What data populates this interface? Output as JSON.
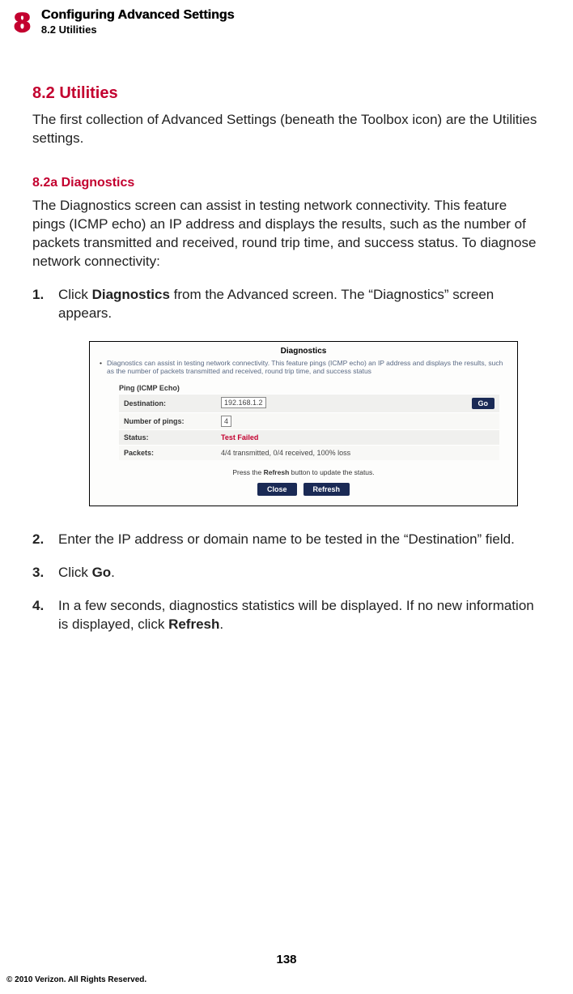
{
  "header": {
    "chapter_number": "8",
    "chapter_title": "Configuring Advanced Settings",
    "section_label": "8.2  Utilities"
  },
  "section": {
    "heading": "8.2  Utilities",
    "intro": "The first collection of Advanced Settings (beneath the Toolbox icon) are the Utilities settings."
  },
  "subsection": {
    "heading": "8.2a Diagnostics",
    "intro": "The Diagnostics screen can assist in testing network connectivity. This feature pings (ICMP echo) an IP address and displays the results, such as the number of packets transmitted and received, round trip time, and success status.  To diagnose network connectivity:"
  },
  "steps": {
    "s1_num": "1.",
    "s1_pre": "Click ",
    "s1_bold": "Diagnostics",
    "s1_post": " from the Advanced screen. The “Diagnostics” screen appears.",
    "s2_num": "2.",
    "s2_txt": "Enter the IP address or domain name to be tested in the “Destination” field.",
    "s3_num": "3.",
    "s3_pre": "Click ",
    "s3_bold": "Go",
    "s3_post": ".",
    "s4_num": "4.",
    "s4_pre": "In a few seconds, diagnostics statistics will be displayed. If no new information is displayed, click ",
    "s4_bold": "Refresh",
    "s4_post": "."
  },
  "screenshot": {
    "title": "Diagnostics",
    "bullet": "Diagnostics can assist in testing network connectivity. This feature pings (ICMP echo) an IP address and displays the results, such as the number of packets transmitted and received, round trip time, and success status",
    "ping_header": "Ping (ICMP Echo)",
    "row_dest_label": "Destination:",
    "row_dest_value": "192.168.1.2",
    "go_label": "Go",
    "row_num_label": "Number of pings:",
    "row_num_value": "4",
    "row_status_label": "Status:",
    "row_status_value": "Test Failed",
    "row_packets_label": "Packets:",
    "row_packets_value": "4/4 transmitted, 0/4 received, 100% loss",
    "press_pre": "Press the ",
    "press_bold": "Refresh",
    "press_post": " button to update the status.",
    "btn_close": "Close",
    "btn_refresh": "Refresh"
  },
  "footer": {
    "page_number": "138",
    "copyright": "© 2010 Verizon. All Rights Reserved."
  },
  "colors": {
    "accent_red": "#c3002f",
    "nav_blue": "#1a2a55"
  }
}
